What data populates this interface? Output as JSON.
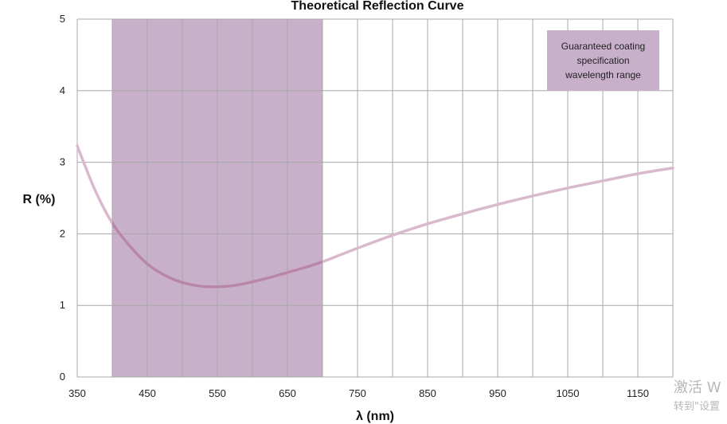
{
  "chart_data": {
    "type": "line",
    "title": "Theoretical Reflection Curve",
    "xlabel": "λ (nm)",
    "ylabel": "R (%)",
    "xlim": [
      350,
      1200
    ],
    "ylim": [
      0,
      5
    ],
    "x_ticks": [
      350,
      450,
      550,
      650,
      750,
      850,
      950,
      1050,
      1150
    ],
    "x_tick_labels": [
      "350",
      "450",
      "550",
      "650",
      "750",
      "850",
      "950",
      "1050",
      "1150"
    ],
    "y_ticks": [
      0,
      1,
      2,
      3,
      4,
      5
    ],
    "y_tick_labels": [
      "0",
      "1",
      "2",
      "3",
      "4",
      "5"
    ],
    "x_minor_step": 50,
    "grid": true,
    "shaded_band": {
      "x_start": 400,
      "x_end": 700,
      "label": [
        "Guaranteed coating",
        "specification",
        "wavelength range"
      ],
      "color": "#c8afca",
      "legend_placement": "top-right"
    },
    "series": [
      {
        "color": "#d9b9cc",
        "x": [
          350,
          375,
          400,
          425,
          450,
          475,
          500,
          525,
          550,
          575,
          600,
          625,
          650,
          675,
          700,
          750,
          800,
          850,
          900,
          950,
          1000,
          1050,
          1100,
          1150,
          1200
        ],
        "y": [
          3.23,
          2.62,
          2.15,
          1.83,
          1.58,
          1.42,
          1.32,
          1.27,
          1.26,
          1.28,
          1.33,
          1.39,
          1.46,
          1.53,
          1.61,
          1.8,
          1.98,
          2.14,
          2.28,
          2.41,
          2.53,
          2.64,
          2.74,
          2.84,
          2.92
        ]
      }
    ]
  },
  "colors": {
    "band": "#c8afca",
    "curve": "#d9b9cc",
    "curve_in_band": "#b27ea0",
    "grid": "#a8a8a8"
  },
  "watermark": {
    "line1": "激活 W",
    "line2": "转到\"设置"
  }
}
